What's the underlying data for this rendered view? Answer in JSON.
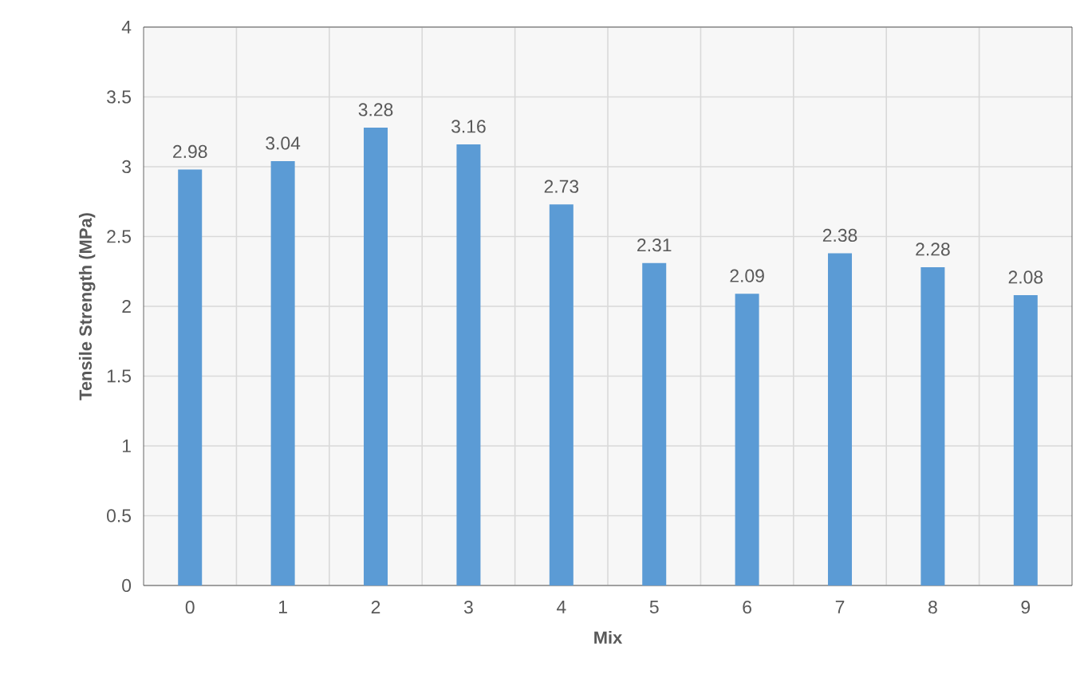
{
  "chart_data": {
    "type": "bar",
    "xlabel": "Mix",
    "ylabel": "Tensile Strength (MPa)",
    "categories": [
      "0",
      "1",
      "2",
      "3",
      "4",
      "5",
      "6",
      "7",
      "8",
      "9"
    ],
    "values": [
      2.98,
      3.04,
      3.28,
      3.16,
      2.73,
      2.31,
      2.09,
      2.38,
      2.28,
      2.08
    ],
    "color": "#5b9bd5",
    "ylim": [
      0,
      4
    ],
    "yticks": [
      0,
      0.5,
      1,
      1.5,
      2,
      2.5,
      3,
      3.5,
      4
    ],
    "grid": true,
    "data_labels": true
  }
}
